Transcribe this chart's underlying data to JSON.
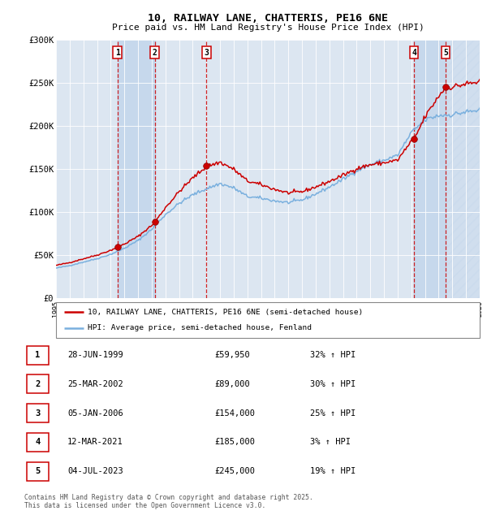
{
  "title": "10, RAILWAY LANE, CHATTERIS, PE16 6NE",
  "subtitle": "Price paid vs. HM Land Registry's House Price Index (HPI)",
  "legend_line1": "10, RAILWAY LANE, CHATTERIS, PE16 6NE (semi-detached house)",
  "legend_line2": "HPI: Average price, semi-detached house, Fenland",
  "footer": "Contains HM Land Registry data © Crown copyright and database right 2025.\nThis data is licensed under the Open Government Licence v3.0.",
  "sales": [
    {
      "num": 1,
      "date": "28-JUN-1999",
      "price": 59950,
      "year": 1999.49,
      "pct": "32%",
      "dir": "↑"
    },
    {
      "num": 2,
      "date": "25-MAR-2002",
      "price": 89000,
      "year": 2002.23,
      "pct": "30%",
      "dir": "↑"
    },
    {
      "num": 3,
      "date": "05-JAN-2006",
      "price": 154000,
      "year": 2006.01,
      "pct": "25%",
      "dir": "↑"
    },
    {
      "num": 4,
      "date": "12-MAR-2021",
      "price": 185000,
      "year": 2021.19,
      "pct": "3%",
      "dir": "↑"
    },
    {
      "num": 5,
      "date": "04-JUL-2023",
      "price": 245000,
      "year": 2023.5,
      "pct": "19%",
      "dir": "↑"
    }
  ],
  "xmin": 1995,
  "xmax": 2026,
  "ymin": 0,
  "ymax": 300000,
  "yticks": [
    0,
    50000,
    100000,
    150000,
    200000,
    250000,
    300000
  ],
  "ytick_labels": [
    "£0",
    "£50K",
    "£100K",
    "£150K",
    "£200K",
    "£250K",
    "£300K"
  ],
  "hpi_color": "#7ab0de",
  "price_color": "#cc0000",
  "bg_color": "#dce6f1",
  "shade_color": "#c6d8ec",
  "vline_color": "#cc0000",
  "hpi_year_vals": {
    "1995": 35000,
    "1996": 38000,
    "1997": 42000,
    "1998": 46000,
    "1999": 51000,
    "2000": 58000,
    "2001": 67000,
    "2002": 80000,
    "2003": 97000,
    "2004": 110000,
    "2005": 120000,
    "2006": 127000,
    "2007": 133000,
    "2008": 128000,
    "2009": 118000,
    "2010": 116000,
    "2011": 113000,
    "2012": 111000,
    "2013": 114000,
    "2014": 121000,
    "2015": 129000,
    "2016": 138000,
    "2017": 148000,
    "2018": 155000,
    "2019": 160000,
    "2020": 166000,
    "2021": 192000,
    "2022": 207000,
    "2023": 212000,
    "2024": 213000,
    "2025": 216000,
    "2026": 218000
  }
}
